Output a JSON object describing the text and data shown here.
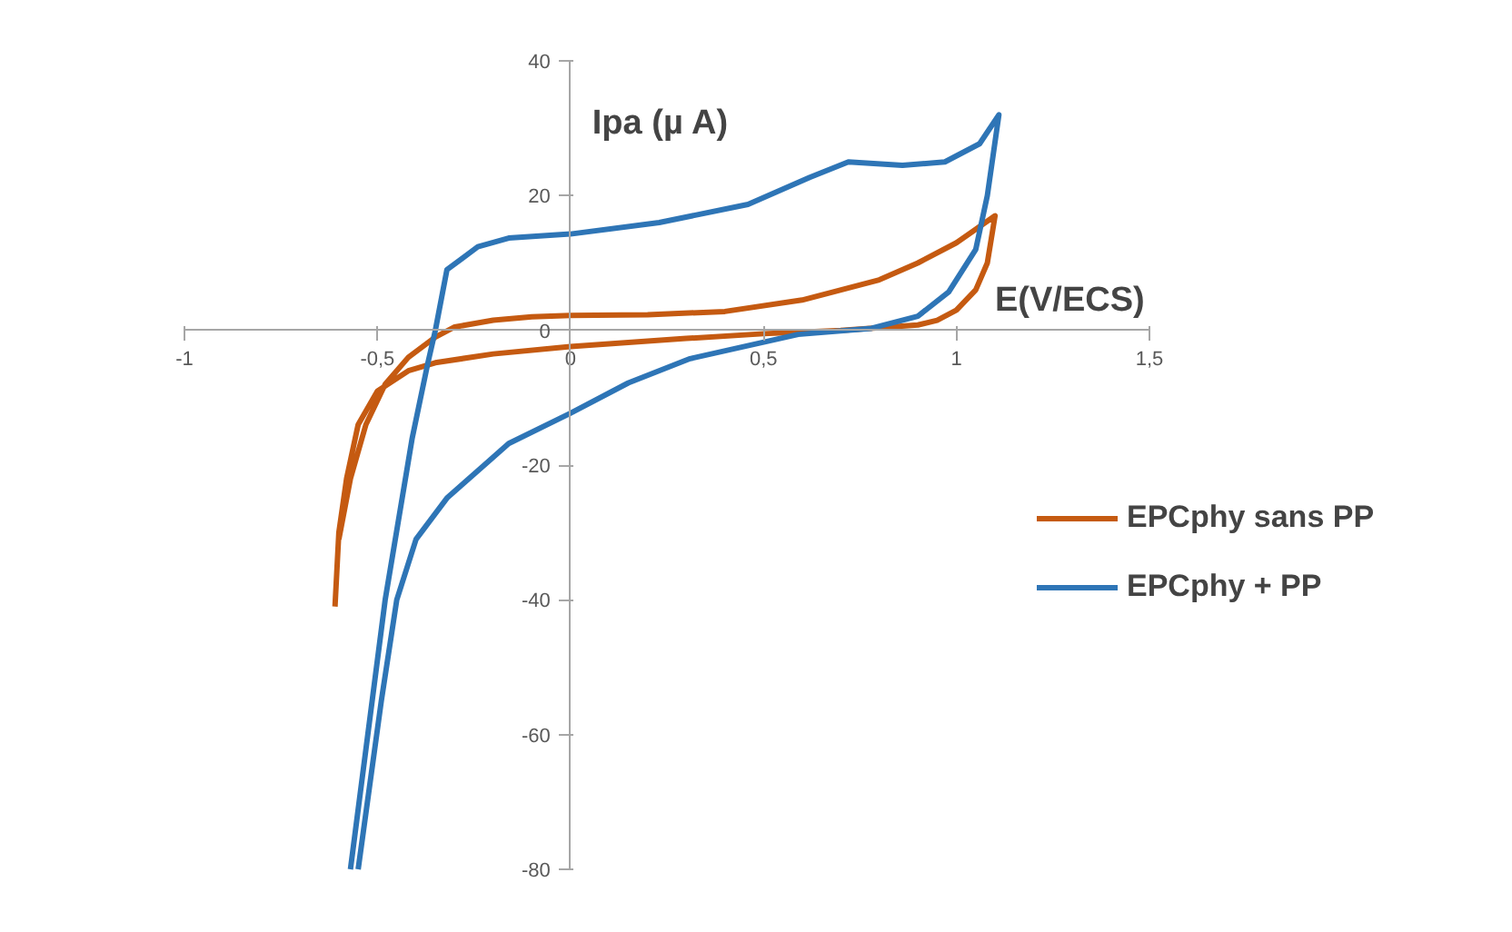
{
  "chart_data": {
    "type": "line",
    "xlabel": "E(V/ECS)",
    "ylabel": "Ipa (µ A)",
    "xlim": [
      -1,
      1.5
    ],
    "ylim": [
      -80,
      40
    ],
    "xticks": [
      -1,
      {
        "value": -0.5,
        "label": "-0,5"
      },
      0,
      {
        "value": 0.5,
        "label": "0,5"
      },
      1,
      {
        "value": 1.5,
        "label": "1,5"
      }
    ],
    "yticks": [
      -80,
      -60,
      -40,
      -20,
      0,
      20,
      40
    ],
    "grid": false,
    "legend": "right",
    "marker": "none",
    "line_style": "solid",
    "series": [
      {
        "name": "EPCphy sans PP",
        "color": "#c55a11",
        "x": [
          -0.6,
          -0.57,
          -0.53,
          -0.48,
          -0.42,
          -0.35,
          -0.3,
          -0.2,
          -0.1,
          0,
          0.2,
          0.4,
          0.6,
          0.8,
          0.9,
          1.0,
          1.1,
          1.08,
          1.05,
          1.0,
          0.95,
          0.9,
          0.7,
          0.5,
          0.3,
          0.1,
          0,
          -0.2,
          -0.35,
          -0.42,
          -0.5,
          -0.55,
          -0.58,
          -0.6,
          -0.61
        ],
        "values": [
          -31,
          -22,
          -14,
          -8,
          -4,
          -1,
          0.5,
          1.5,
          2,
          2.2,
          2.3,
          2.8,
          4.5,
          7.5,
          10,
          13,
          17,
          10,
          6,
          3,
          1.5,
          0.8,
          0,
          -0.5,
          -1.2,
          -2,
          -2.4,
          -3.5,
          -4.8,
          -6,
          -9,
          -14,
          -22,
          -30,
          -41
        ]
      },
      {
        "name": "EPCphy + PP",
        "color": "#2e75b6",
        "x": [
          -0.57,
          -0.48,
          -0.41,
          -0.37,
          -0.35,
          -0.32,
          -0.24,
          -0.16,
          0,
          0.23,
          0.46,
          0.62,
          0.72,
          0.86,
          0.97,
          1.06,
          1.11,
          1.08,
          1.05,
          0.98,
          0.9,
          0.78,
          0.59,
          0.31,
          0.15,
          0,
          -0.16,
          -0.32,
          -0.4,
          -0.45,
          -0.49,
          -0.55
        ],
        "values": [
          -80,
          -40,
          -16,
          -5,
          0,
          9,
          12.4,
          13.7,
          14.3,
          16,
          18.7,
          22.7,
          25,
          24.5,
          25,
          27.7,
          32,
          20,
          12,
          5.7,
          2.1,
          0.3,
          -0.6,
          -4.2,
          -7.8,
          -12.3,
          -16.8,
          -24.9,
          -31,
          -40,
          -55,
          -80
        ]
      }
    ]
  }
}
